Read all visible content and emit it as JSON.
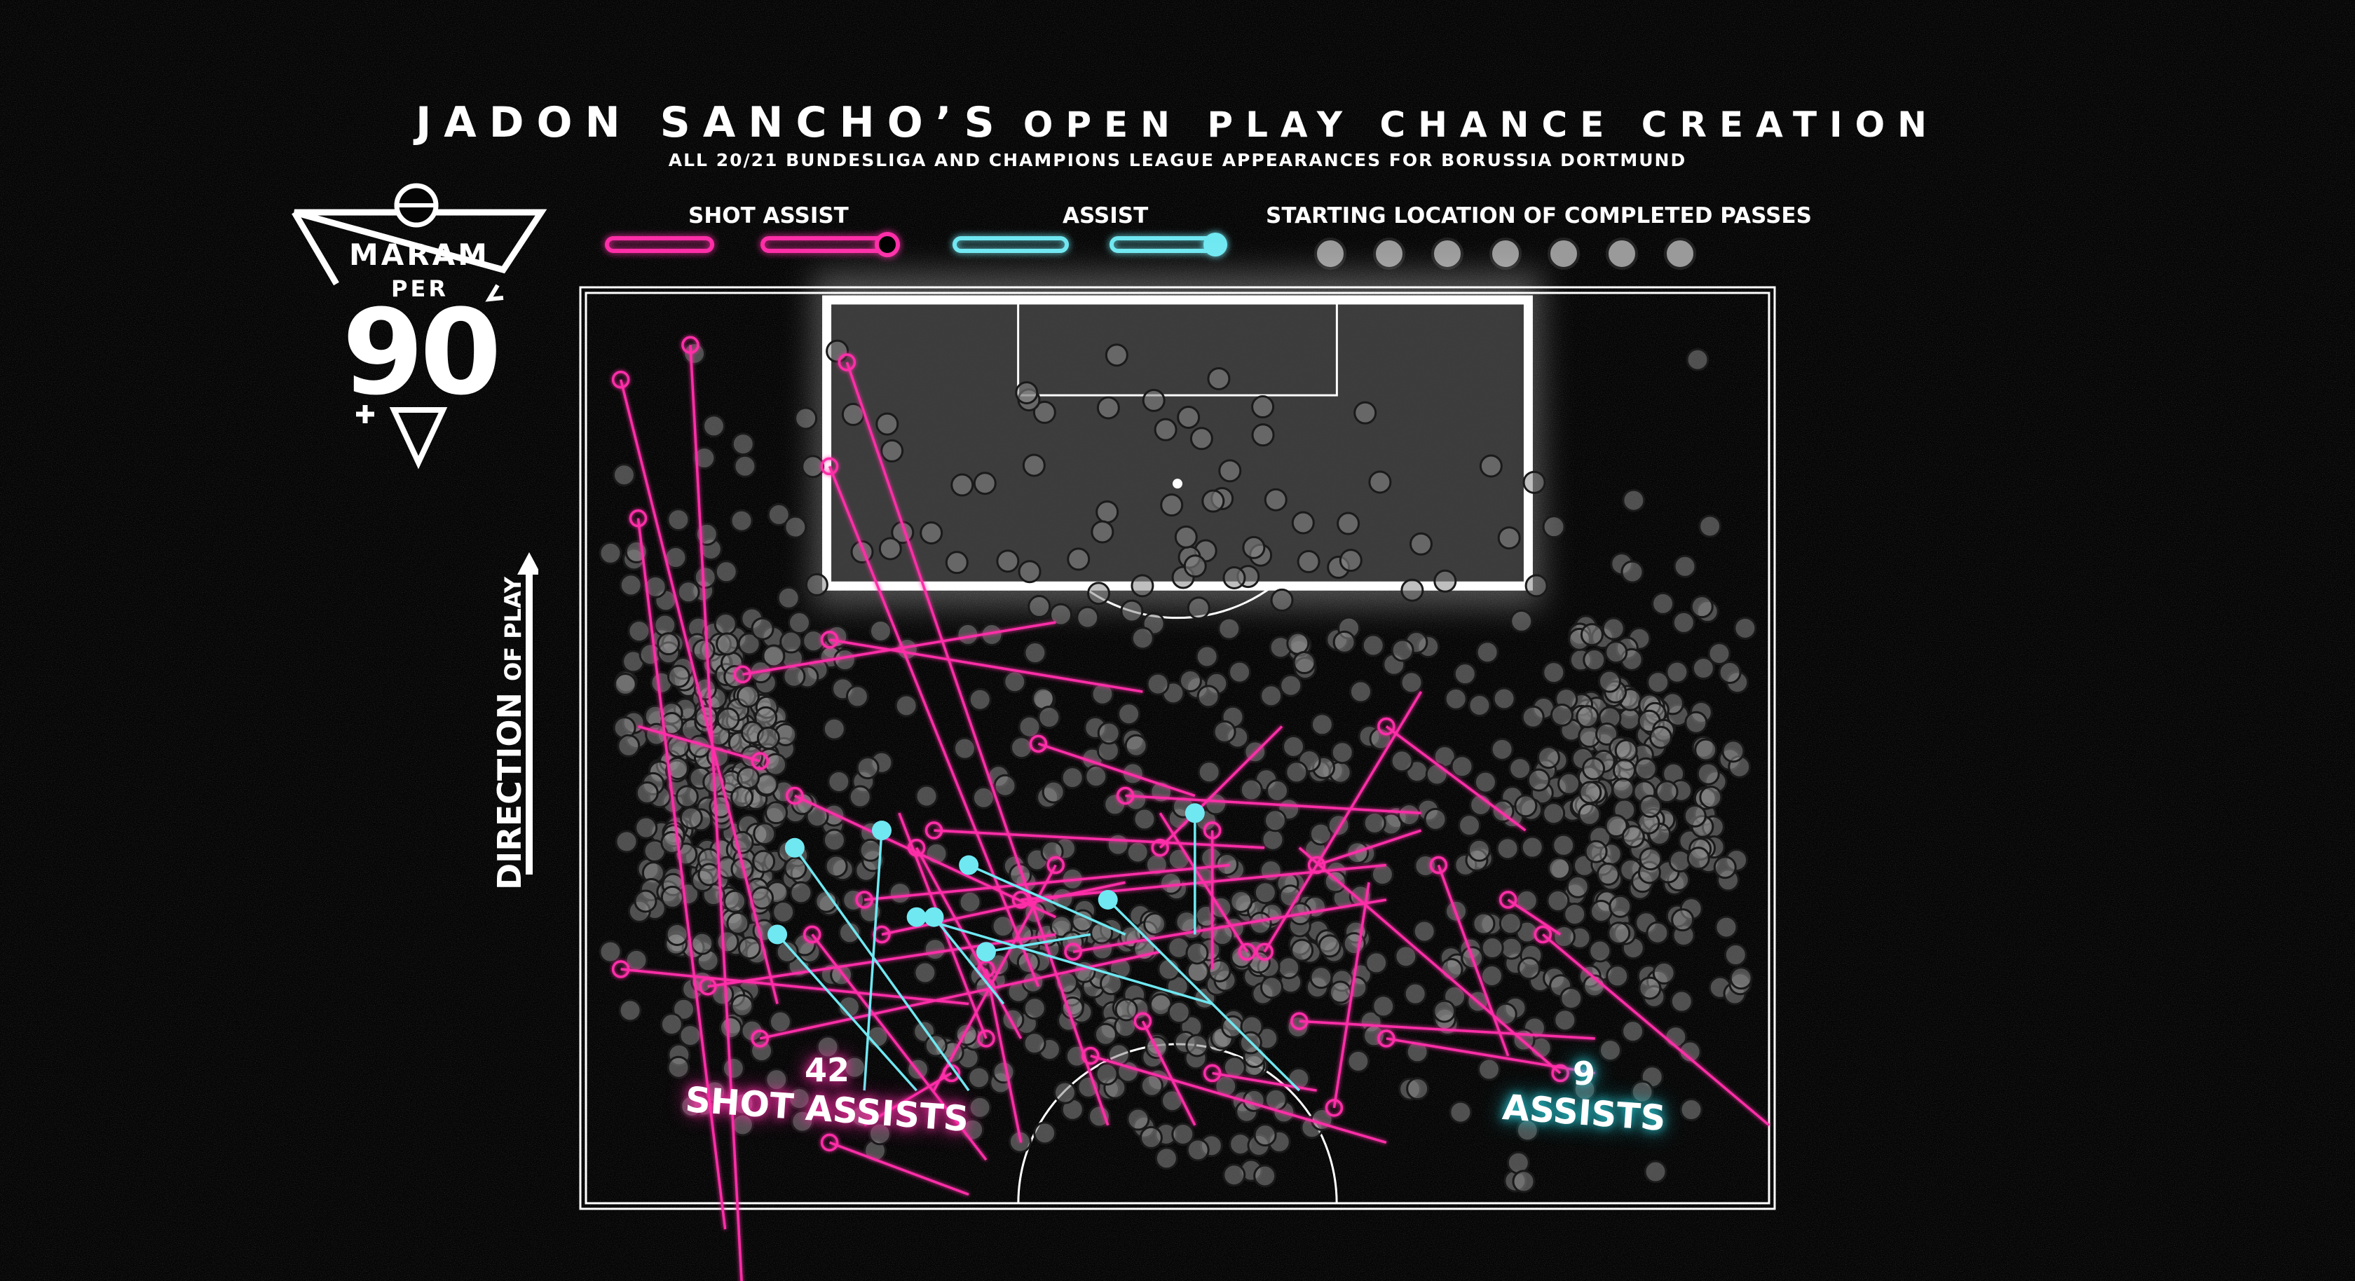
{
  "header": {
    "title_name": "JADON SANCHO’S",
    "title_rest": "OPEN PLAY CHANCE CREATION",
    "subtitle": "ALL 20/21  BUNDESLIGA AND CHAMPIONS LEAGUE APPEARANCES FOR BORUSSIA DORTMUND"
  },
  "legend": {
    "shot_assist": "SHOT ASSIST",
    "assist": "ASSIST",
    "completed_passes": "STARTING LOCATION OF COMPLETED PASSES"
  },
  "logo": {
    "word1": "MARAM",
    "word2": "PER",
    "number": "90"
  },
  "direction": {
    "big": "DIRECTION",
    "small": "OF PLAY"
  },
  "totals": {
    "shot_assists_count": "42",
    "shot_assists_label": "SHOT ASSISTS",
    "assists_count": "9",
    "assists_label": "ASSISTS"
  },
  "colors": {
    "shot_assist": "#ff2fa8",
    "assist": "#6fe8f2",
    "pass_dot": "#8a8a8a",
    "background": "#050505"
  },
  "chart_data": {
    "type": "scatter",
    "title": "JADON SANCHO’S OPEN PLAY CHANCE CREATION",
    "pitch": {
      "width_m": 68,
      "length_shown_m": 52.5,
      "view": "attacking half, direction of play upward"
    },
    "units": "x = metres from left touchline, y = metres from goal line",
    "shot_assists": [
      {
        "from": [
          2,
          5
        ],
        "to": [
          11,
          41
        ]
      },
      {
        "from": [
          3,
          13
        ],
        "to": [
          8,
          54
        ]
      },
      {
        "from": [
          6,
          3
        ],
        "to": [
          9,
          58
        ]
      },
      {
        "from": [
          15,
          4
        ],
        "to": [
          30,
          48
        ]
      },
      {
        "from": [
          14,
          10
        ],
        "to": [
          26,
          40
        ]
      },
      {
        "from": [
          10,
          27
        ],
        "to": [
          3,
          25
        ]
      },
      {
        "from": [
          2,
          39
        ],
        "to": [
          22,
          41
        ]
      },
      {
        "from": [
          7,
          40
        ],
        "to": [
          27,
          37
        ]
      },
      {
        "from": [
          10,
          43
        ],
        "to": [
          33,
          38
        ]
      },
      {
        "from": [
          12,
          29
        ],
        "to": [
          27,
          36
        ]
      },
      {
        "from": [
          19,
          32
        ],
        "to": [
          25,
          43
        ]
      },
      {
        "from": [
          26,
          26
        ],
        "to": [
          35,
          29
        ]
      },
      {
        "from": [
          14,
          20
        ],
        "to": [
          32,
          23
        ]
      },
      {
        "from": [
          20,
          31
        ],
        "to": [
          39,
          32
        ]
      },
      {
        "from": [
          16,
          35
        ],
        "to": [
          37,
          33
        ]
      },
      {
        "from": [
          17,
          37
        ],
        "to": [
          31,
          34
        ]
      },
      {
        "from": [
          25,
          35
        ],
        "to": [
          46,
          33
        ]
      },
      {
        "from": [
          28,
          38
        ],
        "to": [
          46,
          35
        ]
      },
      {
        "from": [
          33,
          32
        ],
        "to": [
          40,
          25
        ]
      },
      {
        "from": [
          39,
          38
        ],
        "to": [
          48,
          23
        ]
      },
      {
        "from": [
          27,
          33
        ],
        "to": [
          20,
          46
        ]
      },
      {
        "from": [
          23,
          39
        ],
        "to": [
          25,
          49
        ]
      },
      {
        "from": [
          21,
          45
        ],
        "to": [
          16,
          48
        ]
      },
      {
        "from": [
          14,
          49
        ],
        "to": [
          22,
          52
        ]
      },
      {
        "from": [
          29,
          44
        ],
        "to": [
          46,
          49
        ]
      },
      {
        "from": [
          42,
          33
        ],
        "to": [
          48,
          31
        ]
      },
      {
        "from": [
          46,
          25
        ],
        "to": [
          54,
          31
        ]
      },
      {
        "from": [
          53,
          35
        ],
        "to": [
          56,
          37
        ]
      },
      {
        "from": [
          32,
          42
        ],
        "to": [
          35,
          48
        ]
      },
      {
        "from": [
          36,
          45
        ],
        "to": [
          42,
          46
        ]
      },
      {
        "from": [
          43,
          47
        ],
        "to": [
          45,
          34
        ]
      },
      {
        "from": [
          46,
          43
        ],
        "to": [
          58,
          45
        ]
      },
      {
        "from": [
          56,
          45
        ],
        "to": [
          41,
          32
        ]
      },
      {
        "from": [
          23,
          43
        ],
        "to": [
          18,
          30
        ]
      },
      {
        "from": [
          31,
          29
        ],
        "to": [
          48,
          30
        ]
      },
      {
        "from": [
          49,
          33
        ],
        "to": [
          53,
          44
        ]
      },
      {
        "from": [
          55,
          37
        ],
        "to": [
          68,
          48
        ]
      },
      {
        "from": [
          38,
          38
        ],
        "to": [
          33,
          30
        ]
      },
      {
        "from": [
          13,
          37
        ],
        "to": [
          23,
          50
        ]
      },
      {
        "from": [
          36,
          31
        ],
        "to": [
          36,
          39
        ]
      },
      {
        "from": [
          41,
          42
        ],
        "to": [
          58,
          43
        ]
      },
      {
        "from": [
          9,
          22
        ],
        "to": [
          27,
          19
        ]
      }
    ],
    "assists": [
      {
        "from": [
          11,
          37
        ],
        "to": [
          19,
          46
        ]
      },
      {
        "from": [
          12,
          32
        ],
        "to": [
          22,
          46
        ]
      },
      {
        "from": [
          17,
          31
        ],
        "to": [
          16,
          46
        ]
      },
      {
        "from": [
          20,
          36
        ],
        "to": [
          24,
          41
        ]
      },
      {
        "from": [
          22,
          33
        ],
        "to": [
          31,
          37
        ]
      },
      {
        "from": [
          23,
          38
        ],
        "to": [
          29,
          37
        ]
      },
      {
        "from": [
          30,
          35
        ],
        "to": [
          41,
          46
        ]
      },
      {
        "from": [
          35,
          30
        ],
        "to": [
          35,
          37
        ]
      },
      {
        "from": [
          19,
          36
        ],
        "to": [
          36,
          41
        ]
      }
    ],
    "completed_pass_starts": {
      "note": "hundreds of grey dots; density highest on left half-space and right flank",
      "approx_count": 1000
    }
  }
}
